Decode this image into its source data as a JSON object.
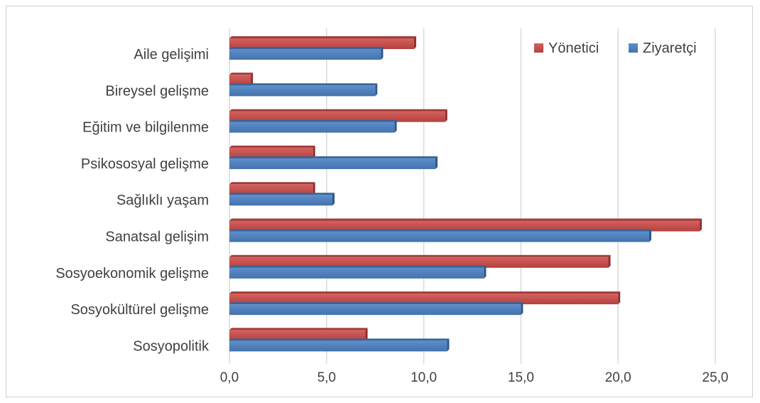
{
  "chart_data": {
    "type": "bar",
    "orientation": "horizontal",
    "categories": [
      "Aile gelişimi",
      "Bireysel gelişme",
      "Eğitim ve bilgilenme",
      "Psikososyal gelişme",
      "Sağlıklı yaşam",
      "Sanatsal gelişim",
      "Sosyoekonomik gelişme",
      "Sosyokültürel gelişme",
      "Sosyopolitik"
    ],
    "series": [
      {
        "name": "Yönetici",
        "color": "#c0504d",
        "values": [
          9.5,
          1.1,
          11.1,
          4.3,
          4.3,
          24.2,
          19.5,
          20.0,
          7.0
        ]
      },
      {
        "name": "Ziyaretçi",
        "color": "#4f81bd",
        "values": [
          7.8,
          7.5,
          8.5,
          10.6,
          5.3,
          21.6,
          13.1,
          15.0,
          11.2
        ]
      }
    ],
    "xlim": [
      0,
      25
    ],
    "xticks": [
      "0,0",
      "5,0",
      "10,0",
      "15,0",
      "20,0",
      "25,0"
    ],
    "xtick_values": [
      0,
      5,
      10,
      15,
      20,
      25
    ],
    "grid": "vertical",
    "legend_position": "top-right",
    "title": "",
    "xlabel": "",
    "ylabel": ""
  }
}
